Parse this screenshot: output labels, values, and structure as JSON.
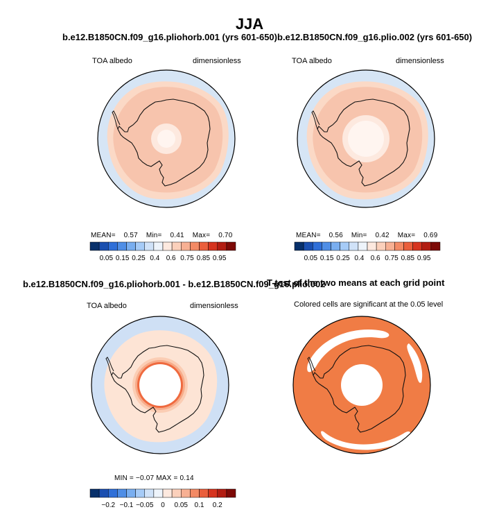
{
  "figure": {
    "main_title": "JJA"
  },
  "colors": {
    "ocean": "#d6e5f5",
    "albedo_high": "#f7c4ad",
    "albedo_mid": "#fbd9c6",
    "albedo_low": "#fde9df",
    "ice_edge": "#fff5f0",
    "diff_base": "#fde4d5",
    "diff_neg": "#cfe0f5",
    "sig": "#f07c45",
    "coast": "#111111"
  },
  "panels": {
    "p1": {
      "title": "b.e12.B1850CN.f09_g16.pliohorb.001 (yrs 601-650)",
      "left_label": "TOA albedo",
      "right_label": "dimensionless",
      "stats": {
        "mean_label": "MEAN=",
        "mean": "0.57",
        "min_label": "Min=",
        "min": "0.41",
        "max_label": "Max=",
        "max": "0.70"
      }
    },
    "p2": {
      "title": "b.e12.B1850CN.f09_g16.plio.002 (yrs 601-650)",
      "left_label": "TOA albedo",
      "right_label": "dimensionless",
      "stats": {
        "mean_label": "MEAN=",
        "mean": "0.56",
        "min_label": "Min=",
        "min": "0.42",
        "max_label": "Max=",
        "max": "0.69"
      }
    },
    "p3": {
      "title": "b.e12.B1850CN.f09_g16.pliohorb.001 - b.e12.B1850CN.f09_g16.plio.002",
      "left_label": "TOA albedo",
      "right_label": "dimensionless",
      "stats_text": "MIN =  −0.07  MAX =   0.14"
    },
    "p4": {
      "title": "T-test of the two means at each grid point",
      "subtitle": "Colored cells are significant at the 0.05 level"
    }
  },
  "chart_data": [
    {
      "type": "heatmap",
      "title": "b.e12.B1850CN.f09_g16.pliohorb.001 (yrs 601-650)",
      "variable": "TOA albedo",
      "units": "dimensionless",
      "stats": {
        "mean": 0.57,
        "min": 0.41,
        "max": 0.7
      },
      "colorbar": {
        "ticks": [
          "0.05",
          "0.15",
          "0.25",
          "0.4",
          "0.6",
          "0.75",
          "0.85",
          "0.95"
        ],
        "colors": [
          "#08306b",
          "#1a4fb0",
          "#2f6fd8",
          "#4f8ee6",
          "#79aef0",
          "#a6cbf7",
          "#d0e2f8",
          "#eef4fb",
          "#fde9df",
          "#fbd0bb",
          "#f7b093",
          "#f38a65",
          "#ea5f3c",
          "#d6341f",
          "#b21d12",
          "#7d0a07"
        ]
      }
    },
    {
      "type": "heatmap",
      "title": "b.e12.B1850CN.f09_g16.plio.002 (yrs 601-650)",
      "variable": "TOA albedo",
      "units": "dimensionless",
      "stats": {
        "mean": 0.56,
        "min": 0.42,
        "max": 0.69
      },
      "colorbar": {
        "ticks": [
          "0.05",
          "0.15",
          "0.25",
          "0.4",
          "0.6",
          "0.75",
          "0.85",
          "0.95"
        ],
        "colors": [
          "#08306b",
          "#1a4fb0",
          "#2f6fd8",
          "#4f8ee6",
          "#79aef0",
          "#a6cbf7",
          "#d0e2f8",
          "#eef4fb",
          "#fde9df",
          "#fbd0bb",
          "#f7b093",
          "#f38a65",
          "#ea5f3c",
          "#d6341f",
          "#b21d12",
          "#7d0a07"
        ]
      }
    },
    {
      "type": "heatmap",
      "title": "b.e12.B1850CN.f09_g16.pliohorb.001 - b.e12.B1850CN.f09_g16.plio.002",
      "variable": "TOA albedo",
      "units": "dimensionless",
      "stats": {
        "min": -0.07,
        "max": 0.14
      },
      "colorbar": {
        "ticks": [
          "−0.2",
          "−0.1",
          "−0.05",
          "0",
          "0.05",
          "0.1",
          "0.2"
        ],
        "colors": [
          "#08306b",
          "#1a4fb0",
          "#2f6fd8",
          "#4f8ee6",
          "#79aef0",
          "#a6cbf7",
          "#d0e2f8",
          "#eef4fb",
          "#fde9df",
          "#fbd0bb",
          "#f7b093",
          "#f38a65",
          "#ea5f3c",
          "#d6341f",
          "#b21d12",
          "#7d0a07"
        ]
      }
    },
    {
      "type": "heatmap",
      "title": "T-test of the two means at each grid point",
      "subtitle": "Colored cells are significant at the 0.05 level",
      "significance_level": 0.05
    }
  ]
}
